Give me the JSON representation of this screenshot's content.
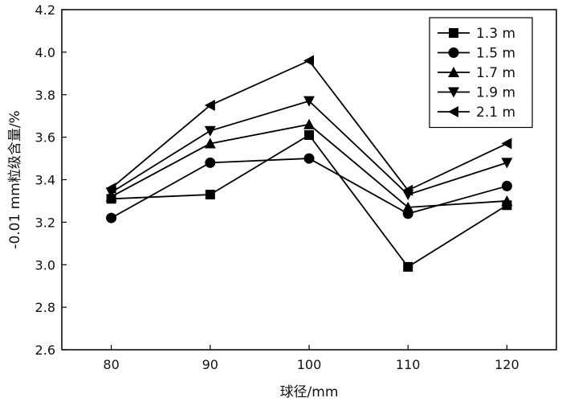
{
  "chart_data": {
    "type": "line",
    "xlabel": "球径/mm",
    "ylabel": "-0.01 mm粒级含量/%",
    "categories": [
      80,
      90,
      100,
      110,
      120
    ],
    "xlim": [
      75,
      125
    ],
    "ylim": [
      2.6,
      4.2
    ],
    "x_ticks": [
      "80",
      "90",
      "100",
      "110",
      "120"
    ],
    "y_ticks": [
      "2.6",
      "2.8",
      "3.0",
      "3.2",
      "3.4",
      "3.6",
      "3.8",
      "4.0",
      "4.2"
    ],
    "grid": false,
    "legend_position": "top-right",
    "series": [
      {
        "name": "1.3 m",
        "marker": "square",
        "values": [
          3.31,
          3.33,
          3.61,
          2.99,
          3.28
        ]
      },
      {
        "name": "1.5 m",
        "marker": "circle",
        "values": [
          3.22,
          3.48,
          3.5,
          3.24,
          3.37
        ]
      },
      {
        "name": "1.7 m",
        "marker": "triangle-up",
        "values": [
          3.32,
          3.57,
          3.66,
          3.27,
          3.3
        ]
      },
      {
        "name": "1.9 m",
        "marker": "triangle-down",
        "values": [
          3.34,
          3.63,
          3.77,
          3.33,
          3.48
        ]
      },
      {
        "name": "2.1 m",
        "marker": "triangle-left",
        "values": [
          3.36,
          3.75,
          3.96,
          3.35,
          3.57
        ]
      }
    ]
  }
}
